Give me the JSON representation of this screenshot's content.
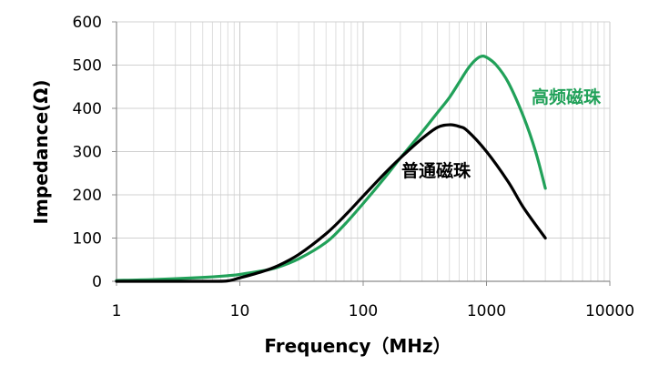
{
  "chart_data": {
    "type": "line",
    "title": "",
    "xlabel": "Frequency（MHz）",
    "ylabel": "Impedance(Ω)",
    "x_scale": "log",
    "xlim": [
      1,
      10000
    ],
    "ylim": [
      0,
      600
    ],
    "x_ticks": [
      "1",
      "10",
      "100",
      "1000",
      "10000"
    ],
    "y_ticks": [
      "0",
      "100",
      "200",
      "300",
      "400",
      "500",
      "600"
    ],
    "grid": true,
    "legend": "inline-labels",
    "series": [
      {
        "name": "普通磁珠",
        "color": "#000000",
        "points": [
          [
            1,
            0
          ],
          [
            3,
            0
          ],
          [
            6,
            0
          ],
          [
            8,
            1
          ],
          [
            10,
            8
          ],
          [
            15,
            22
          ],
          [
            20,
            35
          ],
          [
            30,
            62
          ],
          [
            50,
            110
          ],
          [
            70,
            150
          ],
          [
            100,
            197
          ],
          [
            150,
            250
          ],
          [
            200,
            285
          ],
          [
            300,
            330
          ],
          [
            400,
            356
          ],
          [
            500,
            362
          ],
          [
            600,
            358
          ],
          [
            700,
            348
          ],
          [
            1000,
            300
          ],
          [
            1500,
            230
          ],
          [
            2000,
            170
          ],
          [
            3000,
            100
          ]
        ]
      },
      {
        "name": "高频磁珠",
        "color": "#21A159",
        "points": [
          [
            1,
            2
          ],
          [
            2,
            4
          ],
          [
            5,
            9
          ],
          [
            8,
            13
          ],
          [
            10,
            16
          ],
          [
            15,
            24
          ],
          [
            20,
            32
          ],
          [
            30,
            52
          ],
          [
            50,
            90
          ],
          [
            70,
            130
          ],
          [
            100,
            180
          ],
          [
            150,
            240
          ],
          [
            200,
            285
          ],
          [
            300,
            345
          ],
          [
            400,
            390
          ],
          [
            500,
            425
          ],
          [
            600,
            460
          ],
          [
            700,
            490
          ],
          [
            800,
            510
          ],
          [
            900,
            520
          ],
          [
            1000,
            518
          ],
          [
            1200,
            500
          ],
          [
            1500,
            460
          ],
          [
            2000,
            380
          ],
          [
            2500,
            300
          ],
          [
            3000,
            215
          ]
        ]
      }
    ]
  }
}
